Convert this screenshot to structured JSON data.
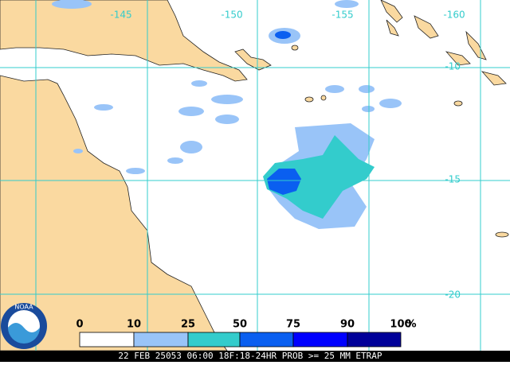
{
  "map": {
    "longitude_labels": [
      -145,
      -150,
      -155,
      -160
    ],
    "latitude_labels": [
      -10,
      -15,
      -20
    ],
    "legend": {
      "ticks": [
        0,
        10,
        25,
        50,
        75,
        90,
        100
      ],
      "unit": "%",
      "colors": [
        "#ffffff",
        "#99c4f8",
        "#33cccc",
        "#0a5ff0",
        "#0000ff",
        "#000099"
      ]
    },
    "footer": "22 FEB 25053 06:00 18F:18-24HR PROB >= 25 MM ETRAP",
    "logo": "NOAA"
  }
}
